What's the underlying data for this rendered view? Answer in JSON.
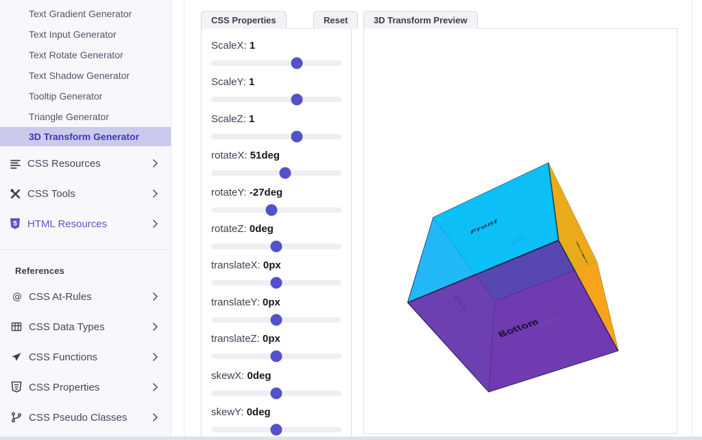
{
  "sidebar": {
    "generator_items": [
      "Text Gradient Generator",
      "Text Input Generator",
      "Text Rotate Generator",
      "Text Shadow Generator",
      "Tooltip Generator",
      "Triangle Generator",
      "3D Transform Generator"
    ],
    "active_item": "3D Transform Generator",
    "groups": [
      {
        "label": "CSS Resources",
        "icon": "list-icon",
        "highlight": false
      },
      {
        "label": "CSS Tools",
        "icon": "tools-icon",
        "highlight": false
      },
      {
        "label": "HTML Resources",
        "icon": "html5-shield-icon",
        "highlight": true
      }
    ],
    "references_header": "References",
    "reference_items": [
      {
        "label": "CSS At-Rules",
        "icon": "at-icon"
      },
      {
        "label": "CSS Data Types",
        "icon": "table-icon"
      },
      {
        "label": "CSS Functions",
        "icon": "send-icon"
      },
      {
        "label": "CSS Properties",
        "icon": "css-shield-icon"
      },
      {
        "label": "CSS Pseudo Classes",
        "icon": "branch-icon"
      }
    ]
  },
  "properties_panel": {
    "title": "CSS Properties",
    "reset_label": "Reset",
    "sliders": [
      {
        "label": "ScaleX",
        "value": "1",
        "percent": 65.8
      },
      {
        "label": "ScaleY",
        "value": "1",
        "percent": 65.8
      },
      {
        "label": "ScaleZ",
        "value": "1",
        "percent": 65.8
      },
      {
        "label": "rotateX",
        "value": "51deg",
        "percent": 57.1
      },
      {
        "label": "rotateY",
        "value": "-27deg",
        "percent": 46.3
      },
      {
        "label": "rotateZ",
        "value": "0deg",
        "percent": 50
      },
      {
        "label": "translateX",
        "value": "0px",
        "percent": 50
      },
      {
        "label": "translateY",
        "value": "0px",
        "percent": 50
      },
      {
        "label": "translateZ",
        "value": "0px",
        "percent": 50
      },
      {
        "label": "skewX",
        "value": "0deg",
        "percent": 50
      },
      {
        "label": "skewY",
        "value": "0deg",
        "percent": 50
      }
    ]
  },
  "preview_panel": {
    "title": "3D Transform Preview",
    "cube": {
      "rotateX": "51deg",
      "rotateY": "-27deg",
      "faces": [
        {
          "name": "front",
          "label": "Front",
          "color": "rgba(10,185,248,0.85)",
          "label_color": "#0d2b4e"
        },
        {
          "name": "back",
          "label": "Back",
          "color": "rgba(157,94,222,0.72)",
          "label_color": "#e0d0fb"
        },
        {
          "name": "right",
          "label": "Right",
          "color": "rgba(251,166,7,0.92)",
          "label_color": "#27180a"
        },
        {
          "name": "left",
          "label": "Left",
          "color": "rgba(62,84,213,0.45)",
          "label_color": "#332a7d"
        },
        {
          "name": "top",
          "label": "Top",
          "color": "rgba(0,226,236,0.9)",
          "label_color": "#0e7c86"
        },
        {
          "name": "bottom",
          "label": "Bottom",
          "color": "rgba(99,43,166,0.85)",
          "label_color": "#140d22"
        }
      ]
    }
  },
  "colors": {
    "accent": "#5551c9",
    "active_item_bg": "#cbcaec",
    "active_item_text": "#3b38b4",
    "sidebar_bg": "#f8f8fc"
  }
}
